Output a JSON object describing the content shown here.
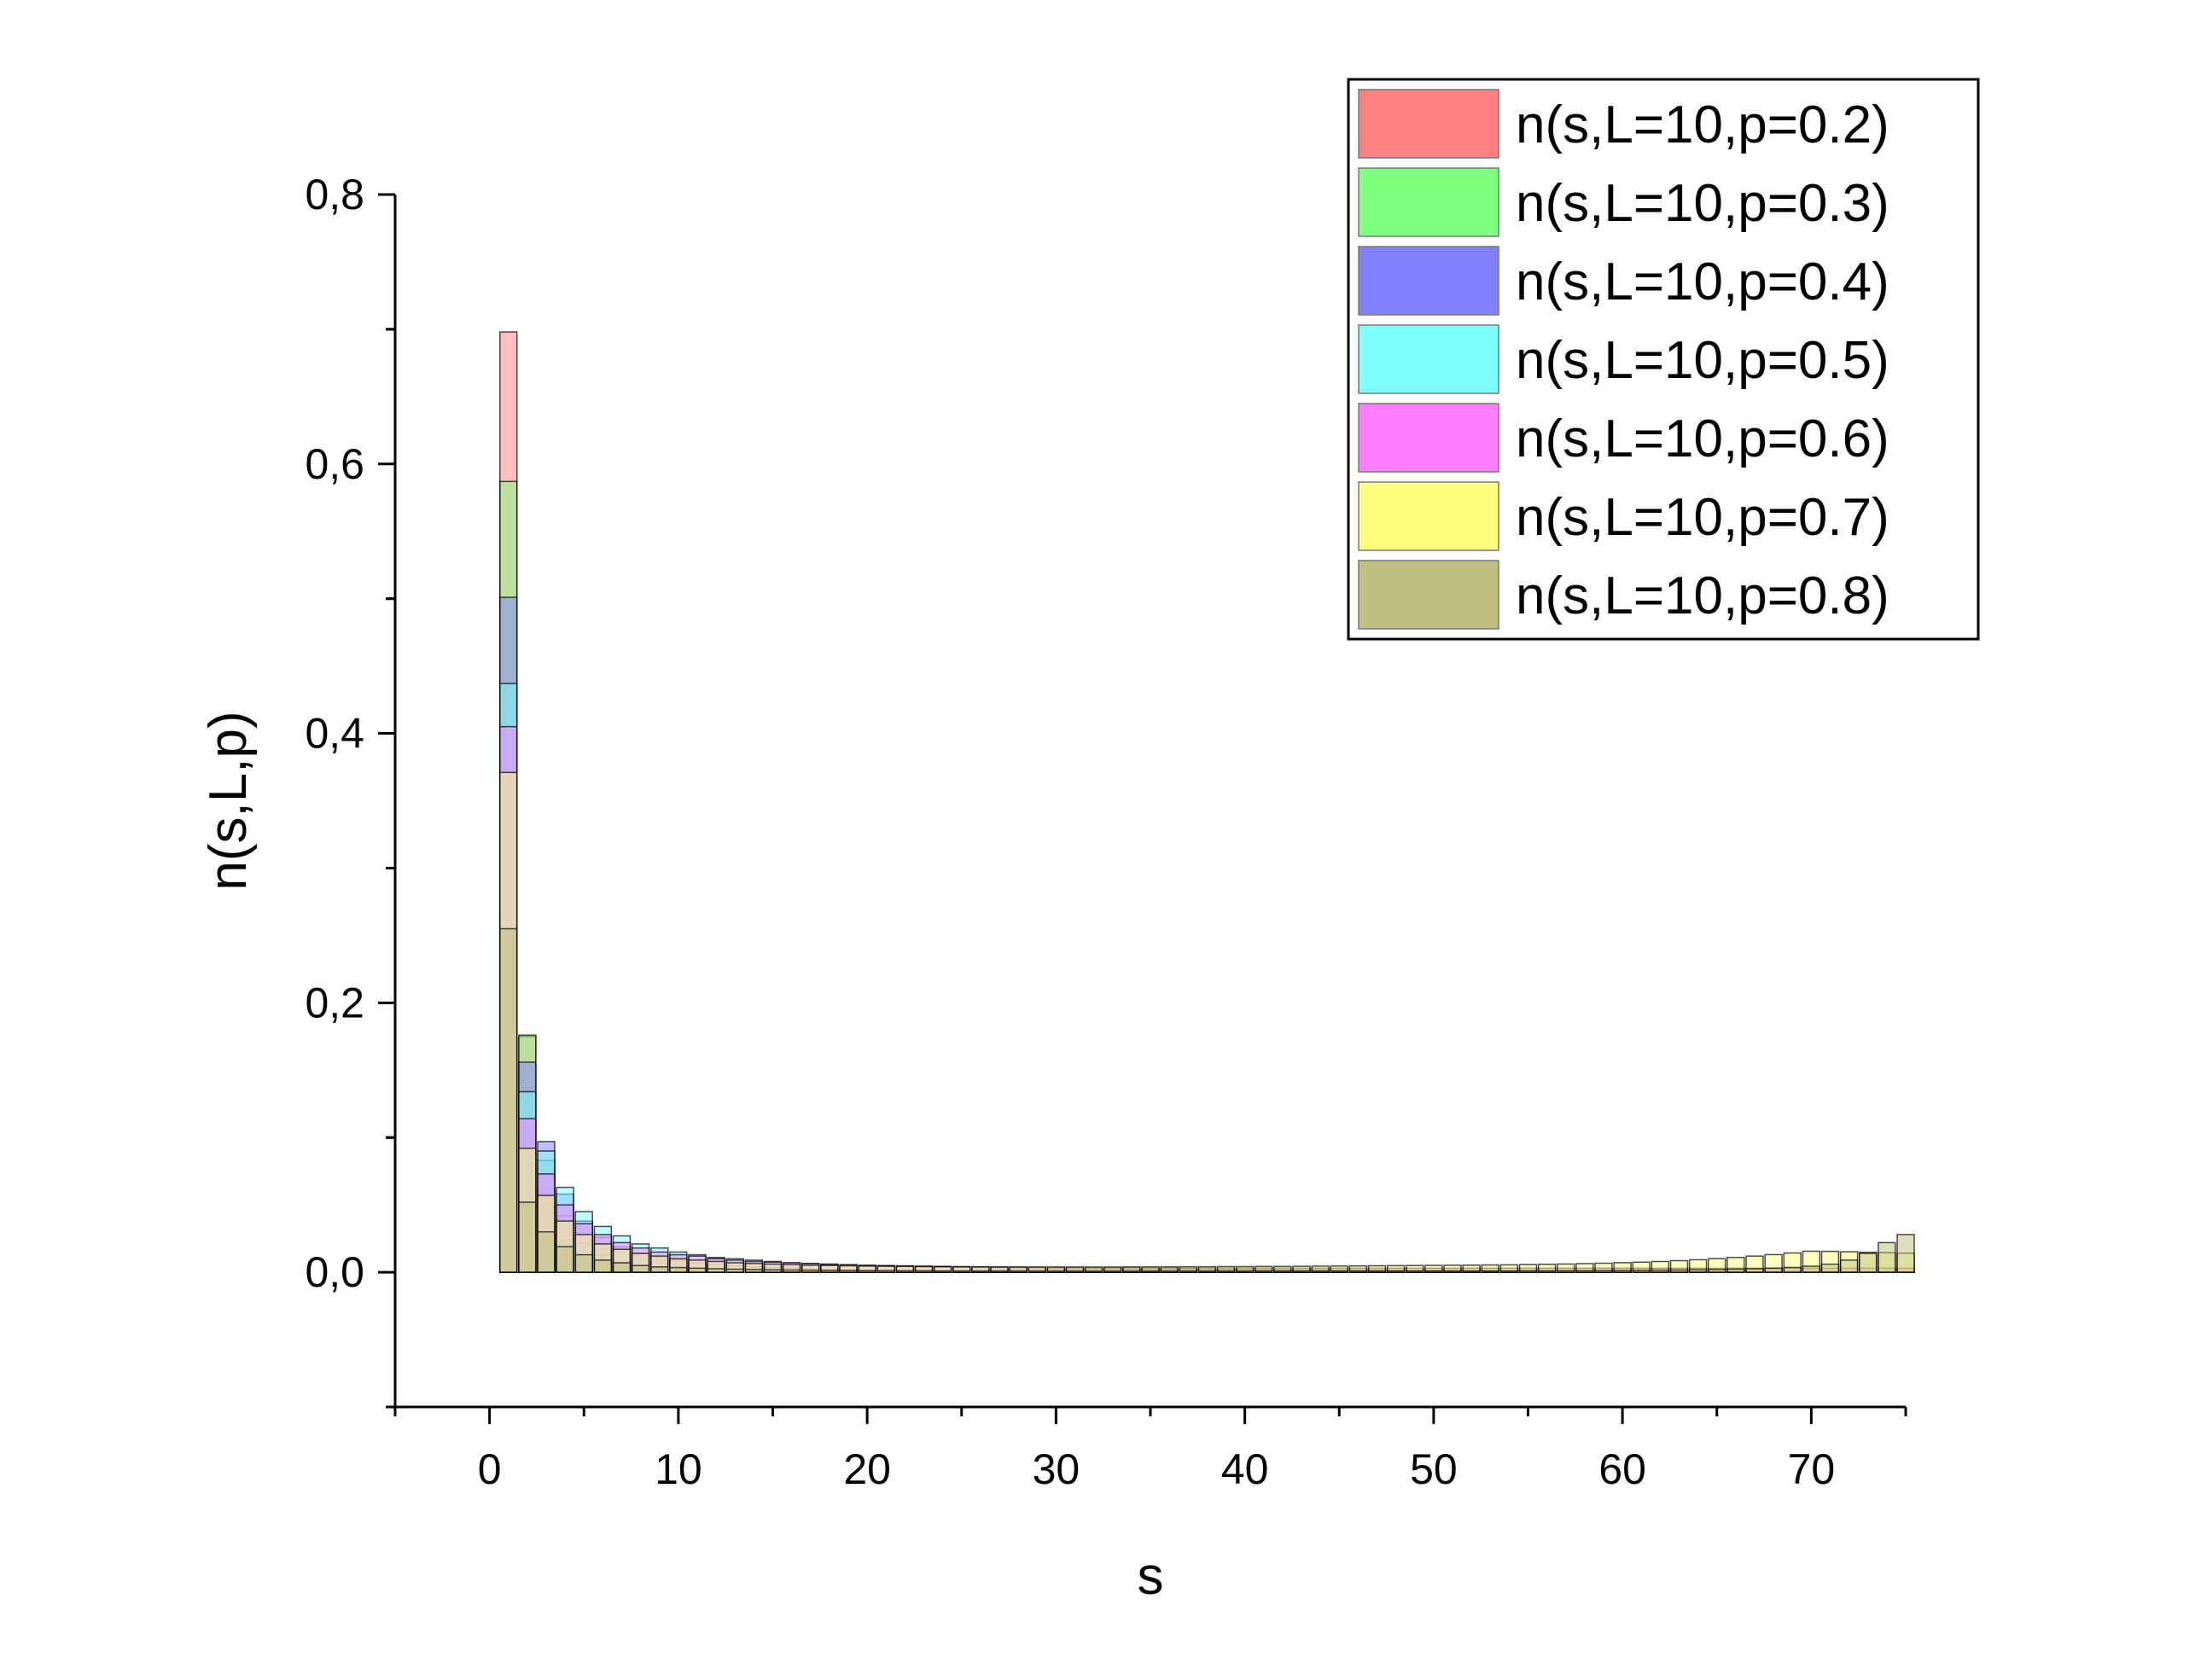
{
  "chart_data": {
    "type": "bar",
    "title": "",
    "xlabel": "s",
    "ylabel": "n(s,L,p)",
    "xlim": [
      -5,
      75
    ],
    "ylim": [
      -0.1,
      0.8
    ],
    "xticks": [
      0,
      10,
      20,
      30,
      40,
      50,
      60,
      70
    ],
    "yticks": [
      0.0,
      0.2,
      0.4,
      0.6,
      0.8
    ],
    "xtick_labels": [
      "0",
      "10",
      "20",
      "30",
      "40",
      "50",
      "60",
      "70"
    ],
    "ytick_labels": [
      "0,0",
      "0,2",
      "0,4",
      "0,6",
      "0,8"
    ],
    "grid": false,
    "legend_position": "top-right",
    "bar_width": 0.9,
    "x": [
      1,
      2,
      3,
      4,
      5,
      6,
      7,
      8,
      9,
      10,
      11,
      12,
      13,
      14,
      15,
      16,
      17,
      18,
      19,
      20,
      21,
      22,
      23,
      24,
      25,
      26,
      27,
      28,
      29,
      30,
      31,
      32,
      33,
      34,
      35,
      36,
      37,
      38,
      39,
      40,
      41,
      42,
      43,
      44,
      45,
      46,
      47,
      48,
      49,
      50,
      51,
      52,
      53,
      54,
      55,
      56,
      57,
      58,
      59,
      60,
      61,
      62,
      63,
      64,
      65,
      66,
      67,
      68,
      69,
      70,
      71,
      72,
      73,
      74,
      75
    ],
    "series": [
      {
        "name": "n(s,L=10,p=0.2)",
        "color": "#ff8080",
        "values": [
          0.698,
          0.175,
          0.062,
          0.024,
          0.01,
          0.005,
          0.002,
          0.001,
          0.001,
          0.0005,
          0.0003,
          0.0002,
          0.0001,
          0.0001,
          0,
          0,
          0,
          0,
          0,
          0,
          0,
          0,
          0,
          0,
          0,
          0,
          0,
          0,
          0,
          0,
          0,
          0,
          0,
          0,
          0,
          0,
          0,
          0,
          0,
          0,
          0,
          0,
          0,
          0,
          0,
          0,
          0,
          0,
          0,
          0,
          0,
          0,
          0,
          0,
          0,
          0,
          0,
          0,
          0,
          0,
          0,
          0,
          0,
          0,
          0,
          0,
          0,
          0,
          0,
          0,
          0,
          0,
          0,
          0,
          0
        ]
      },
      {
        "name": "n(s,L=10,p=0.3)",
        "color": "#80ff80",
        "values": [
          0.587,
          0.176,
          0.083,
          0.042,
          0.022,
          0.013,
          0.008,
          0.005,
          0.003,
          0.002,
          0.0015,
          0.001,
          0.0008,
          0.0006,
          0.0004,
          0.0003,
          0.0002,
          0.0002,
          0.0001,
          0.0001,
          0,
          0,
          0,
          0,
          0,
          0,
          0,
          0,
          0,
          0,
          0,
          0,
          0,
          0,
          0,
          0,
          0,
          0,
          0,
          0,
          0,
          0,
          0,
          0,
          0,
          0,
          0,
          0,
          0,
          0,
          0,
          0,
          0,
          0,
          0,
          0,
          0,
          0,
          0,
          0,
          0,
          0,
          0,
          0,
          0,
          0,
          0,
          0,
          0,
          0,
          0,
          0,
          0,
          0,
          0
        ]
      },
      {
        "name": "n(s,L=10,p=0.4)",
        "color": "#8080ff",
        "values": [
          0.501,
          0.156,
          0.097,
          0.058,
          0.038,
          0.026,
          0.019,
          0.014,
          0.011,
          0.009,
          0.007,
          0.006,
          0.005,
          0.004,
          0.0035,
          0.003,
          0.0025,
          0.002,
          0.0018,
          0.0015,
          0.0013,
          0.0011,
          0.001,
          0.0009,
          0.0008,
          0.0007,
          0.0006,
          0.0005,
          0.0005,
          0.0004,
          0.0004,
          0.0003,
          0.0003,
          0.0003,
          0.0002,
          0.0002,
          0.0002,
          0.0002,
          0.0001,
          0.0001,
          0.0001,
          0.0001,
          0.0001,
          0.0001,
          0.0001,
          0.0001,
          0,
          0,
          0,
          0,
          0,
          0,
          0,
          0,
          0,
          0,
          0,
          0,
          0,
          0,
          0,
          0,
          0,
          0,
          0,
          0,
          0,
          0,
          0,
          0,
          0,
          0,
          0,
          0,
          0
        ]
      },
      {
        "name": "n(s,L=10,p=0.5)",
        "color": "#80ffff",
        "values": [
          0.437,
          0.134,
          0.09,
          0.063,
          0.045,
          0.034,
          0.027,
          0.021,
          0.018,
          0.015,
          0.013,
          0.011,
          0.01,
          0.009,
          0.008,
          0.007,
          0.0065,
          0.006,
          0.0055,
          0.005,
          0.0047,
          0.0044,
          0.0041,
          0.0038,
          0.0036,
          0.0034,
          0.0032,
          0.003,
          0.0029,
          0.0028,
          0.0027,
          0.0026,
          0.0025,
          0.0024,
          0.0023,
          0.0022,
          0.0021,
          0.002,
          0.002,
          0.0019,
          0.0018,
          0.0018,
          0.0017,
          0.0017,
          0.0016,
          0.0016,
          0.0015,
          0.0015,
          0.0014,
          0.0014,
          0.0013,
          0.0013,
          0.0012,
          0.0012,
          0.0011,
          0.0011,
          0.001,
          0.001,
          0.001,
          0.0009,
          0.0009,
          0.0008,
          0.0008,
          0.0008,
          0.0007,
          0.0007,
          0.0006,
          0.0006,
          0.0006,
          0.0005,
          0.0005,
          0.0005,
          0.0004,
          0.0004,
          0.0004
        ]
      },
      {
        "name": "n(s,L=10,p=0.6)",
        "color": "#ff80ff",
        "values": [
          0.405,
          0.114,
          0.073,
          0.05,
          0.036,
          0.028,
          0.022,
          0.018,
          0.015,
          0.013,
          0.012,
          0.01,
          0.009,
          0.008,
          0.0075,
          0.007,
          0.0065,
          0.006,
          0.0056,
          0.0052,
          0.005,
          0.0048,
          0.0046,
          0.0044,
          0.0042,
          0.004,
          0.0039,
          0.0038,
          0.0037,
          0.0036,
          0.0035,
          0.0034,
          0.0034,
          0.0033,
          0.0032,
          0.0032,
          0.0031,
          0.0031,
          0.003,
          0.003,
          0.003,
          0.003,
          0.003,
          0.003,
          0.003,
          0.003,
          0.003,
          0.003,
          0.003,
          0.003,
          0.003,
          0.003,
          0.003,
          0.003,
          0.003,
          0.003,
          0.003,
          0.003,
          0.003,
          0.003,
          0.003,
          0.003,
          0.003,
          0.003,
          0.003,
          0.003,
          0.003,
          0.003,
          0.003,
          0.003,
          0.003,
          0.003,
          0.003,
          0.003,
          0.003
        ]
      },
      {
        "name": "n(s,L=10,p=0.7)",
        "color": "#ffff80",
        "values": [
          0.371,
          0.092,
          0.057,
          0.038,
          0.028,
          0.021,
          0.017,
          0.014,
          0.012,
          0.01,
          0.009,
          0.008,
          0.007,
          0.0065,
          0.006,
          0.0056,
          0.0052,
          0.005,
          0.0048,
          0.0046,
          0.0044,
          0.0043,
          0.0042,
          0.0041,
          0.004,
          0.004,
          0.0039,
          0.0039,
          0.0039,
          0.0039,
          0.0039,
          0.0039,
          0.0039,
          0.004,
          0.004,
          0.004,
          0.0041,
          0.0041,
          0.0042,
          0.0042,
          0.0043,
          0.0043,
          0.0044,
          0.0045,
          0.0046,
          0.0047,
          0.0048,
          0.0049,
          0.005,
          0.0051,
          0.0052,
          0.0053,
          0.0054,
          0.0055,
          0.0057,
          0.0059,
          0.0061,
          0.0064,
          0.0067,
          0.0071,
          0.0075,
          0.008,
          0.0086,
          0.0093,
          0.0101,
          0.011,
          0.012,
          0.0131,
          0.0143,
          0.0156,
          0.0155,
          0.0152,
          0.0148,
          0.0145,
          0.0142
        ]
      },
      {
        "name": "n(s,L=10,p=0.8)",
        "color": "#c0c080",
        "values": [
          0.255,
          0.052,
          0.03,
          0.019,
          0.013,
          0.009,
          0.007,
          0.005,
          0.004,
          0.0035,
          0.003,
          0.0026,
          0.0023,
          0.002,
          0.0018,
          0.0016,
          0.0015,
          0.0014,
          0.0013,
          0.0012,
          0.0012,
          0.0011,
          0.0011,
          0.001,
          0.001,
          0.001,
          0.001,
          0.001,
          0.001,
          0.001,
          0.001,
          0.001,
          0.001,
          0.001,
          0.001,
          0.001,
          0.001,
          0.001,
          0.001,
          0.001,
          0.001,
          0.001,
          0.001,
          0.001,
          0.001,
          0.001,
          0.001,
          0.001,
          0.001,
          0.001,
          0.001,
          0.001,
          0.001,
          0.001,
          0.0011,
          0.0011,
          0.0012,
          0.0012,
          0.0013,
          0.0014,
          0.0015,
          0.0016,
          0.0017,
          0.0019,
          0.0021,
          0.0023,
          0.0026,
          0.003,
          0.0036,
          0.0045,
          0.006,
          0.009,
          0.014,
          0.022,
          0.028
        ]
      }
    ]
  }
}
